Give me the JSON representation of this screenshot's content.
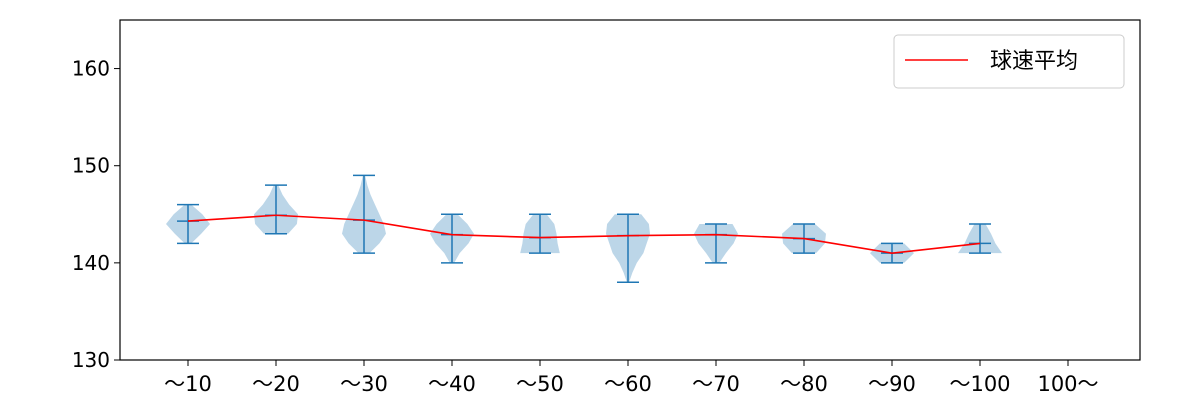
{
  "chart_data": {
    "type": "violin",
    "categories": [
      "～10",
      "～20",
      "～30",
      "～40",
      "～50",
      "～60",
      "～70",
      "～80",
      "～90",
      "～100",
      "100～"
    ],
    "ylim": [
      130,
      165
    ],
    "yticks": [
      130,
      140,
      150,
      160
    ],
    "legend": {
      "label": "球速平均",
      "placement": "top-right"
    },
    "colors": {
      "violin_fill": "#a6c8e0",
      "violin_line": "#1f77b4",
      "mean_line": "#ff0000",
      "axes": "#000000"
    },
    "violins": [
      {
        "category": "～10",
        "min": 142,
        "max": 146,
        "mean": 144.3,
        "density": [
          [
            142,
            0.15
          ],
          [
            143,
            0.6
          ],
          [
            144,
            1.0
          ],
          [
            145,
            0.65
          ],
          [
            146,
            0.15
          ]
        ]
      },
      {
        "category": "～20",
        "min": 143,
        "max": 148,
        "mean": 144.9,
        "density": [
          [
            143,
            0.55
          ],
          [
            144,
            0.95
          ],
          [
            145,
            1.0
          ],
          [
            146,
            0.6
          ],
          [
            147,
            0.3
          ],
          [
            148,
            0.1
          ]
        ]
      },
      {
        "category": "～30",
        "min": 141,
        "max": 149,
        "mean": 144.4,
        "density": [
          [
            141,
            0.25
          ],
          [
            142,
            0.7
          ],
          [
            143,
            1.0
          ],
          [
            144,
            0.9
          ],
          [
            145,
            0.7
          ],
          [
            146,
            0.5
          ],
          [
            147,
            0.3
          ],
          [
            148,
            0.15
          ],
          [
            149,
            0.05
          ]
        ]
      },
      {
        "category": "～40",
        "min": 140,
        "max": 145,
        "mean": 142.9,
        "density": [
          [
            140,
            0.1
          ],
          [
            141,
            0.35
          ],
          [
            142,
            0.75
          ],
          [
            143,
            1.0
          ],
          [
            144,
            0.7
          ],
          [
            145,
            0.25
          ]
        ]
      },
      {
        "category": "～50",
        "min": 141,
        "max": 145,
        "mean": 142.6,
        "density": [
          [
            141,
            0.9
          ],
          [
            142,
            0.8
          ],
          [
            143,
            0.75
          ],
          [
            144,
            0.65
          ],
          [
            145,
            0.3
          ]
        ]
      },
      {
        "category": "～60",
        "min": 138,
        "max": 145,
        "mean": 142.8,
        "density": [
          [
            138,
            0.05
          ],
          [
            139,
            0.2
          ],
          [
            140,
            0.4
          ],
          [
            141,
            0.7
          ],
          [
            142,
            0.85
          ],
          [
            143,
            1.0
          ],
          [
            144,
            0.95
          ],
          [
            145,
            0.6
          ]
        ]
      },
      {
        "category": "～70",
        "min": 140,
        "max": 144,
        "mean": 142.9,
        "density": [
          [
            140,
            0.15
          ],
          [
            141,
            0.45
          ],
          [
            142,
            0.8
          ],
          [
            143,
            1.0
          ],
          [
            144,
            0.75
          ]
        ]
      },
      {
        "category": "～80",
        "min": 141,
        "max": 144,
        "mean": 142.5,
        "density": [
          [
            141,
            0.55
          ],
          [
            142,
            0.95
          ],
          [
            143,
            1.0
          ],
          [
            144,
            0.5
          ]
        ]
      },
      {
        "category": "～90",
        "min": 140,
        "max": 142,
        "mean": 141.0,
        "density": [
          [
            140,
            0.55
          ],
          [
            141,
            1.0
          ],
          [
            142,
            0.55
          ]
        ]
      },
      {
        "category": "～100",
        "min": 141,
        "max": 144,
        "mean": 142.0,
        "density": [
          [
            141,
            1.0
          ],
          [
            142,
            0.7
          ],
          [
            143,
            0.5
          ],
          [
            144,
            0.25
          ]
        ]
      },
      {
        "category": "100～",
        "min": null,
        "max": null,
        "mean": null,
        "density": []
      }
    ]
  }
}
